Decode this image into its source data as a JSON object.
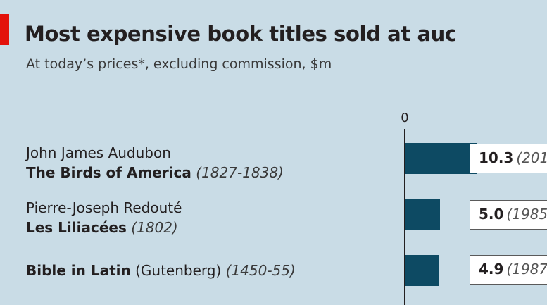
{
  "colors": {
    "accent_red": "#e3120b",
    "bar": "#0d4a63",
    "background": "#c9dce6",
    "axis": "#231f20"
  },
  "header": {
    "title": "Most expensive book titles sold at aucti",
    "subtitle": "At today’s prices*, excluding commission, $m"
  },
  "chart_data": {
    "type": "bar",
    "orientation": "horizontal",
    "title": "Most expensive book titles sold at aucti",
    "subtitle": "At today’s prices*, excluding commission, $m",
    "x_tick_labels": [
      "0"
    ],
    "rows": [
      {
        "author": "John James Audubon",
        "book": "The Birds of America",
        "extra": "",
        "date": "(1827-1838)",
        "value": 10.3,
        "value_label": "10.3",
        "year_label": "(201"
      },
      {
        "author": "Pierre-Joseph Redouté",
        "book": "Les Liliacées",
        "extra": "",
        "date": "(1802)",
        "value": 5.0,
        "value_label": "5.0",
        "year_label": "(1985"
      },
      {
        "author": "",
        "book": "Bible in Latin",
        "extra": "(Gutenberg)",
        "date": "(1450-55)",
        "value": 4.9,
        "value_label": "4.9",
        "year_label": "(1987"
      }
    ]
  }
}
